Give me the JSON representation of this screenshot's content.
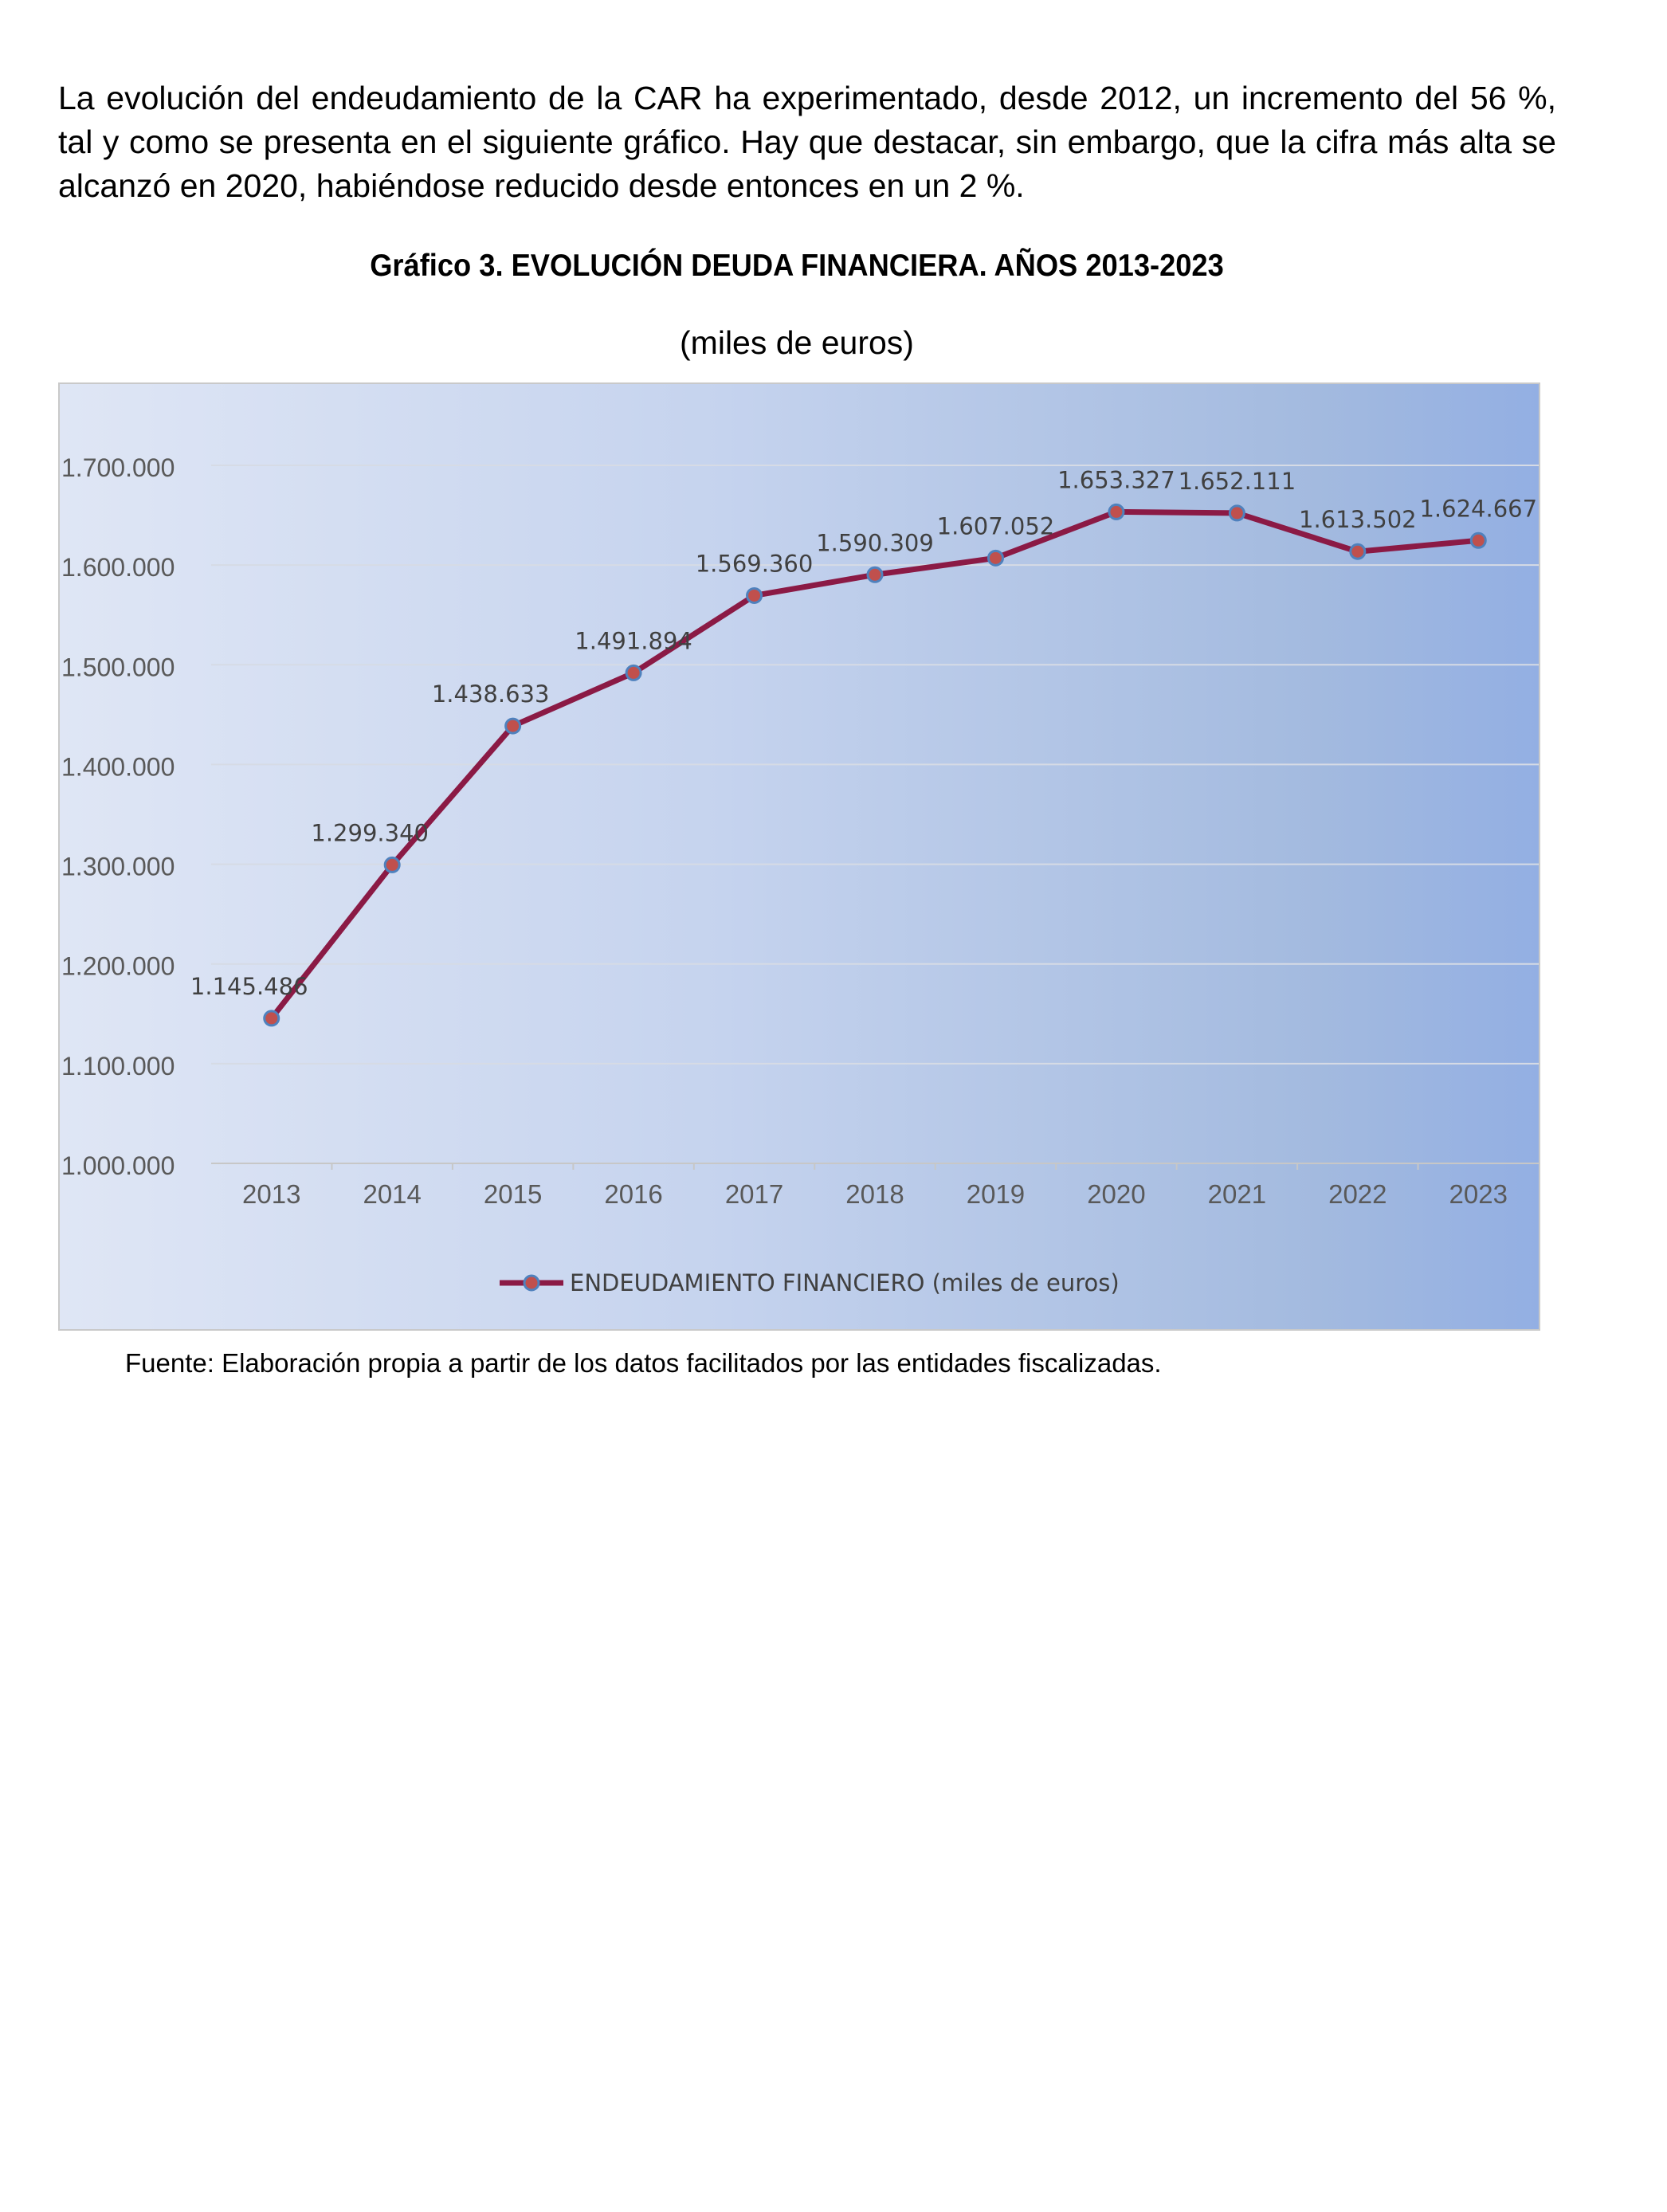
{
  "intro_text": "La evolución del endeudamiento de la CAR ha experimentado, desde 2012, un incremento del 56 %, tal y como se presenta en el siguiente gráfico. Hay que destacar, sin embargo, que la cifra más alta se alcanzó en 2020, habiéndose reducido desde entonces en un 2 %.",
  "source_text": "Fuente: Elaboración propia a partir de los datos facilitados por las entidades fiscalizadas.",
  "chart_data": {
    "type": "line",
    "title": "Gráfico 3.  EVOLUCIÓN DEUDA FINANCIERA. AÑOS 2013-2023",
    "subtitle": "(miles de euros)",
    "xlabel": "",
    "ylabel": "",
    "categories": [
      "2013",
      "2014",
      "2015",
      "2016",
      "2017",
      "2018",
      "2019",
      "2020",
      "2021",
      "2022",
      "2023"
    ],
    "ylim": [
      1000000,
      1700000
    ],
    "yticks": [
      1000000,
      1100000,
      1200000,
      1300000,
      1400000,
      1500000,
      1600000,
      1700000
    ],
    "ytick_labels": [
      "1.000.000",
      "1.100.000",
      "1.200.000",
      "1.300.000",
      "1.400.000",
      "1.500.000",
      "1.600.000",
      "1.700.000"
    ],
    "series": [
      {
        "name": "ENDEUDAMIENTO FINANCIERO (miles de euros)",
        "values": [
          1145486,
          1299340,
          1438633,
          1491894,
          1569360,
          1590309,
          1607052,
          1653327,
          1652111,
          1613502,
          1624667
        ],
        "labels": [
          "1.145.486",
          "1.299.340",
          "1.438.633",
          "1.491.894",
          "1.569.360",
          "1.590.309",
          "1.607.052",
          "1.653.327",
          "1.652.111",
          "1.613.502",
          "1.624.667"
        ],
        "line_color": "#8b1a45",
        "marker_color": "#c0504d",
        "marker_edge_color": "#4f81bd"
      }
    ],
    "grid": true,
    "legend_position": "bottom"
  }
}
